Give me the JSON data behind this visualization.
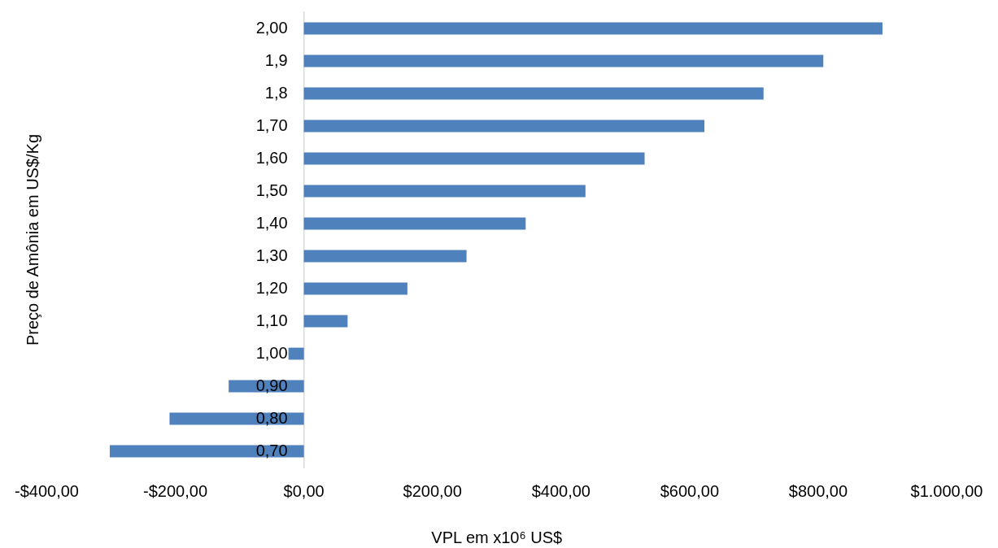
{
  "chart_data": {
    "type": "bar",
    "orientation": "horizontal",
    "xlabel": "VPL em x10⁶ US$",
    "ylabel": "Preço de Amônia em US$/Kg",
    "categories": [
      "2,00",
      "1,9",
      "1,8",
      "1,70",
      "1,60",
      "1,50",
      "1,40",
      "1,30",
      "1,20",
      "1,10",
      "1,00",
      "0,90",
      "0,80",
      "0,70"
    ],
    "values": [
      900,
      808,
      715,
      623,
      530,
      438,
      345,
      253,
      161,
      68,
      -24,
      -117,
      -209,
      -302
    ],
    "color": "#4f81bd",
    "xlim": [
      -400,
      1000
    ],
    "xticks": [
      {
        "value": -400,
        "label": "-$400,00"
      },
      {
        "value": -200,
        "label": "-$200,00"
      },
      {
        "value": 0,
        "label": "$0,00"
      },
      {
        "value": 200,
        "label": "$200,00"
      },
      {
        "value": 400,
        "label": "$400,00"
      },
      {
        "value": 600,
        "label": "$600,00"
      },
      {
        "value": 800,
        "label": "$800,00"
      },
      {
        "value": 1000,
        "label": "$1.000,00"
      }
    ]
  }
}
